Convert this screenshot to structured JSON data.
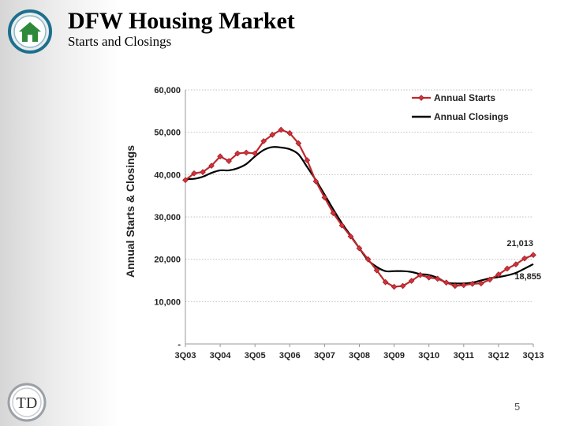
{
  "header": {
    "title": "DFW Housing Market",
    "subtitle": "Starts and Closings"
  },
  "footer": {
    "page_number": "5"
  },
  "logos": {
    "top_left": "house-logo",
    "bottom_left": "TD"
  },
  "colors": {
    "starts": "#c0282d",
    "starts_marker": "#d4313a",
    "closings": "#000000",
    "grid": "#bfbfbf"
  },
  "chart_data": {
    "type": "line",
    "ylabel": "Annual Starts & Closings",
    "ylim": [
      0,
      60000
    ],
    "ytick_values": [
      0,
      10000,
      20000,
      30000,
      40000,
      50000,
      60000
    ],
    "ytick_labels": [
      "-",
      "10,000",
      "20,000",
      "30,000",
      "40,000",
      "50,000",
      "60,000"
    ],
    "xlim": [
      2003.5,
      2013.5
    ],
    "xtick_values": [
      2003.5,
      2004.5,
      2005.5,
      2006.5,
      2007.5,
      2008.5,
      2009.5,
      2010.5,
      2011.5,
      2012.5,
      2013.5
    ],
    "xtick_labels": [
      "3Q03",
      "3Q04",
      "3Q05",
      "3Q06",
      "3Q07",
      "3Q08",
      "3Q09",
      "3Q10",
      "3Q11",
      "3Q12",
      "3Q13"
    ],
    "grid": "horizontal dotted",
    "legend_position": "top-right",
    "series": [
      {
        "name": "Annual Starts",
        "style": "line-with-diamond-markers",
        "x": [
          2003.5,
          2003.75,
          2004.0,
          2004.25,
          2004.5,
          2004.75,
          2005.0,
          2005.25,
          2005.5,
          2005.75,
          2006.0,
          2006.25,
          2006.5,
          2006.75,
          2007.0,
          2007.25,
          2007.5,
          2007.75,
          2008.0,
          2008.25,
          2008.5,
          2008.75,
          2009.0,
          2009.25,
          2009.5,
          2009.75,
          2010.0,
          2010.25,
          2010.5,
          2010.75,
          2011.0,
          2011.25,
          2011.5,
          2011.75,
          2012.0,
          2012.25,
          2012.5,
          2012.75,
          2013.0,
          2013.25,
          2013.5
        ],
        "values": [
          38700,
          40300,
          40600,
          42100,
          44300,
          43200,
          45000,
          45200,
          45000,
          47900,
          49400,
          50600,
          49800,
          47400,
          43400,
          38400,
          34600,
          30900,
          28000,
          25400,
          22600,
          20000,
          17400,
          14600,
          13500,
          13700,
          14900,
          16300,
          15700,
          15400,
          14500,
          13700,
          13900,
          14200,
          14300,
          15200,
          16400,
          17800,
          18800,
          20200,
          21013
        ]
      },
      {
        "name": "Annual Closings",
        "style": "smooth-line",
        "x": [
          2003.5,
          2003.75,
          2004.0,
          2004.25,
          2004.5,
          2004.75,
          2005.0,
          2005.25,
          2005.5,
          2005.75,
          2006.0,
          2006.25,
          2006.5,
          2006.75,
          2007.0,
          2007.25,
          2007.5,
          2007.75,
          2008.0,
          2008.25,
          2008.5,
          2008.75,
          2009.0,
          2009.25,
          2009.5,
          2009.75,
          2010.0,
          2010.25,
          2010.5,
          2010.75,
          2011.0,
          2011.25,
          2011.5,
          2011.75,
          2012.0,
          2012.25,
          2012.5,
          2012.75,
          2013.0,
          2013.25,
          2013.5
        ],
        "values": [
          39000,
          39000,
          39500,
          40400,
          41000,
          41000,
          41500,
          42500,
          44300,
          45800,
          46500,
          46400,
          46000,
          44800,
          41800,
          38700,
          35300,
          31800,
          28500,
          25600,
          22600,
          19800,
          18200,
          17200,
          17200,
          17200,
          17000,
          16500,
          16300,
          15600,
          14500,
          14300,
          14300,
          14500,
          15000,
          15500,
          15800,
          16200,
          16800,
          17800,
          18855
        ]
      }
    ],
    "annotations": [
      {
        "text": "21,013",
        "series": "Annual Starts",
        "x": 2013.5,
        "y": 21013
      },
      {
        "text": "18,855",
        "series": "Annual Closings",
        "x": 2013.5,
        "y": 18855
      }
    ]
  }
}
